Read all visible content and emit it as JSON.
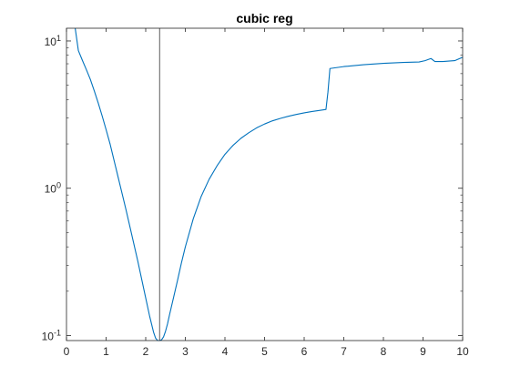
{
  "chart_data": {
    "type": "line",
    "title": "cubic reg",
    "xlabel": "",
    "ylabel": "",
    "xlim": [
      0,
      10
    ],
    "ylim": [
      0.0925,
      12.2
    ],
    "yscale": "log",
    "grid": false,
    "x_ticks": [
      0,
      1,
      2,
      3,
      4,
      5,
      6,
      7,
      8,
      9,
      10
    ],
    "x_tick_labels": [
      "0",
      "1",
      "2",
      "3",
      "4",
      "5",
      "6",
      "7",
      "8",
      "9",
      "10"
    ],
    "y_ticks": [
      0.1,
      1,
      10
    ],
    "y_tick_labels": [
      {
        "base": "10",
        "exp": "-1"
      },
      {
        "base": "10",
        "exp": "0"
      },
      {
        "base": "10",
        "exp": "1"
      }
    ],
    "vertical_line": {
      "x": 2.35,
      "color": "#333333"
    },
    "series": [
      {
        "color": "#0072BD",
        "x": [
          0.22,
          0.3,
          0.4,
          0.5,
          0.6,
          0.7,
          0.8,
          0.9,
          1.0,
          1.1,
          1.2,
          1.3,
          1.4,
          1.5,
          1.6,
          1.7,
          1.8,
          1.9,
          2.0,
          2.1,
          2.2,
          2.25,
          2.3,
          2.35,
          2.4,
          2.45,
          2.5,
          2.55,
          2.6,
          2.7,
          2.8,
          2.9,
          3.0,
          3.2,
          3.4,
          3.6,
          3.8,
          4.0,
          4.2,
          4.4,
          4.6,
          4.8,
          5.0,
          5.2,
          5.4,
          5.6,
          5.8,
          6.0,
          6.2,
          6.4,
          6.55,
          6.6,
          6.65,
          7.0,
          7.5,
          8.0,
          8.5,
          8.9,
          9.05,
          9.2,
          9.3,
          9.5,
          9.8,
          10.0
        ],
        "y": [
          12.2,
          8.6,
          7.4,
          6.4,
          5.5,
          4.6,
          3.8,
          3.1,
          2.5,
          2.0,
          1.55,
          1.2,
          0.93,
          0.72,
          0.55,
          0.42,
          0.32,
          0.24,
          0.18,
          0.135,
          0.105,
          0.096,
          0.0925,
          0.0925,
          0.0935,
          0.098,
          0.107,
          0.12,
          0.138,
          0.18,
          0.235,
          0.31,
          0.4,
          0.62,
          0.88,
          1.15,
          1.42,
          1.7,
          1.95,
          2.18,
          2.38,
          2.57,
          2.73,
          2.87,
          2.98,
          3.08,
          3.17,
          3.25,
          3.32,
          3.38,
          3.43,
          4.5,
          6.5,
          6.7,
          6.9,
          7.05,
          7.15,
          7.2,
          7.35,
          7.6,
          7.25,
          7.25,
          7.35,
          7.75
        ]
      }
    ]
  }
}
